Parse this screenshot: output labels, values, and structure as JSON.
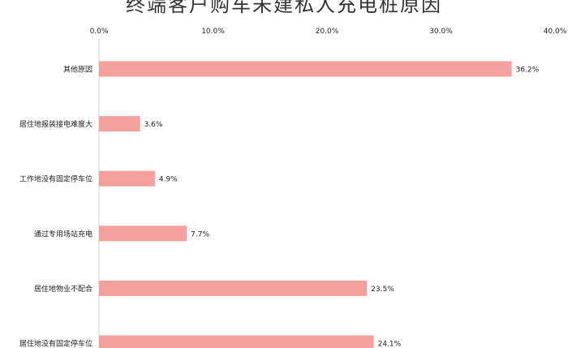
{
  "chart_data": {
    "type": "bar",
    "orientation": "horizontal",
    "title": "终端客户购车未建私人充电桩原因",
    "xlabel": "",
    "ylabel": "",
    "xlim": [
      0,
      0.4
    ],
    "x_ticks": [
      "0.0%",
      "10.0%",
      "20.0%",
      "30.0%",
      "40.0%"
    ],
    "x_axis_position": "top",
    "grid": false,
    "legend": "none",
    "bar_color": "#F4A09D",
    "categories": [
      "其他原因",
      "居住地报装接电难度大",
      "工作地没有固定停车位",
      "通过专用场站充电",
      "居住地物业不配合",
      "居住地没有固定停车位"
    ],
    "values": [
      0.362,
      0.036,
      0.049,
      0.077,
      0.235,
      0.241
    ],
    "value_labels": [
      "36.2%",
      "3.6%",
      "4.9%",
      "7.7%",
      "23.5%",
      "24.1%"
    ]
  }
}
